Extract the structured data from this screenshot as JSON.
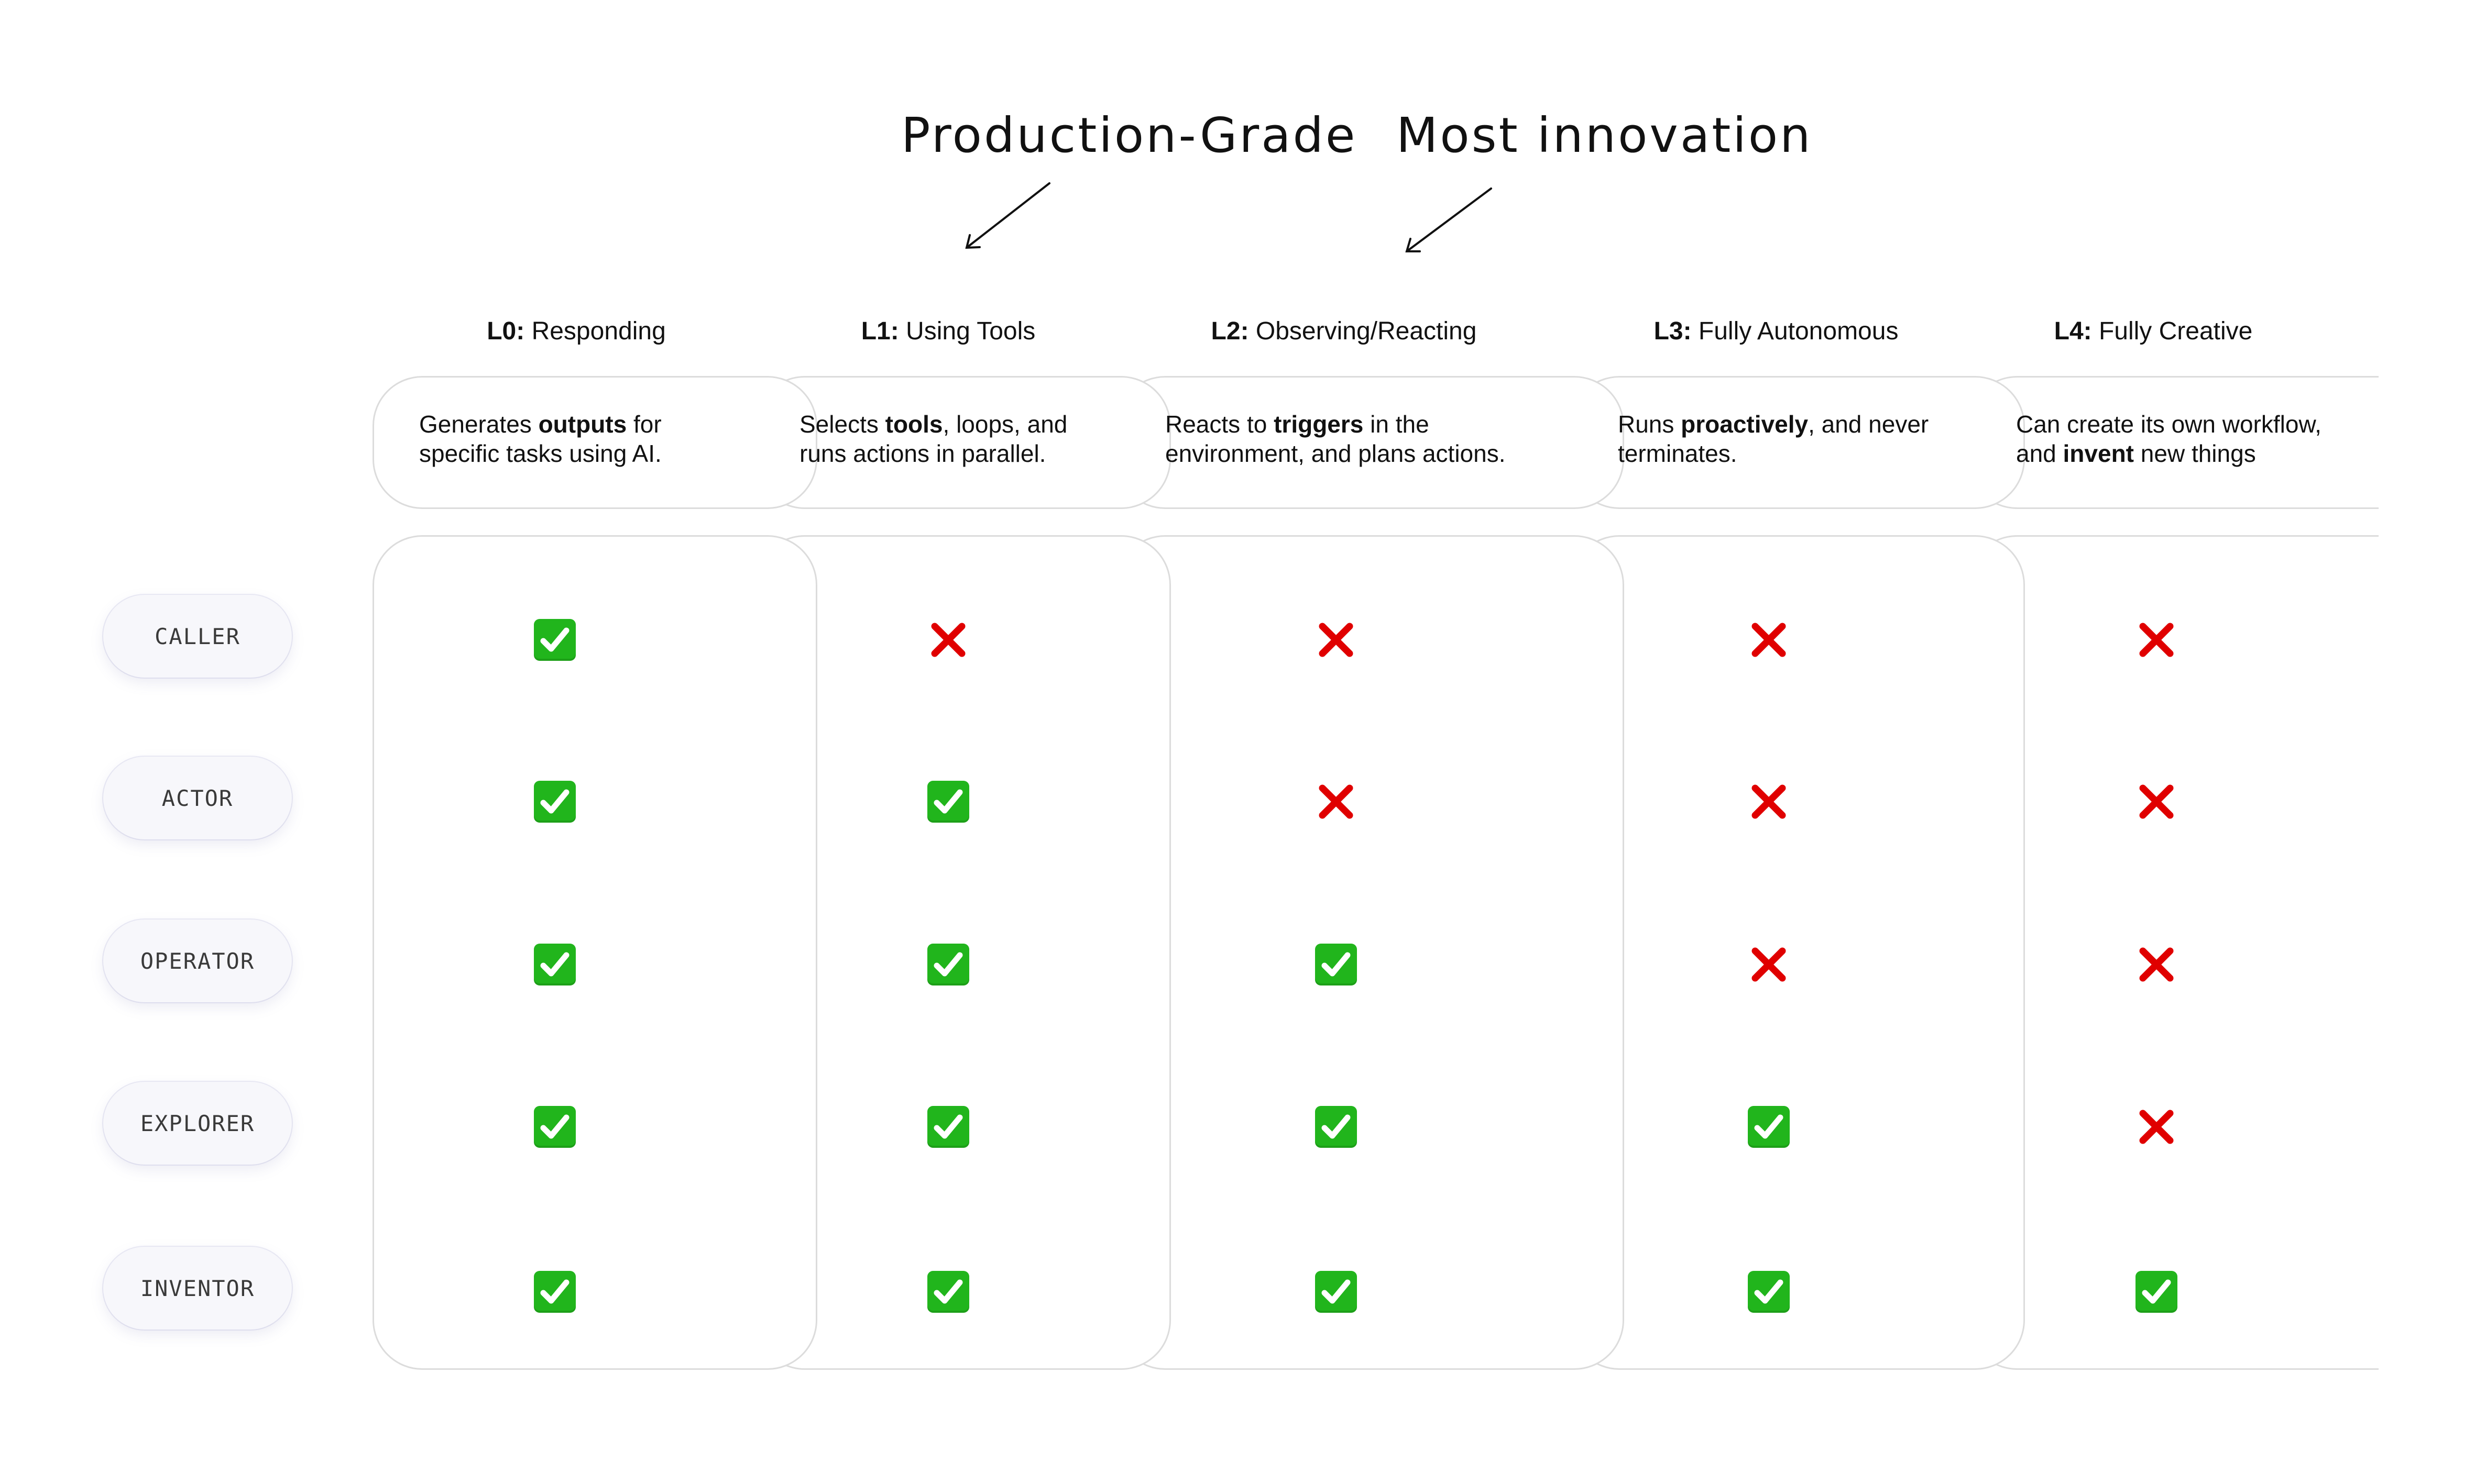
{
  "annotations": {
    "left": "Production-Grade",
    "right": "Most innovation"
  },
  "levels": [
    {
      "code": "L0:",
      "name": "Responding",
      "desc": [
        [
          [
            "Generates ",
            false
          ],
          [
            "outputs",
            true
          ],
          [
            " for",
            false
          ]
        ],
        [
          [
            "specific tasks using AI.",
            false
          ]
        ]
      ]
    },
    {
      "code": "L1:",
      "name": "Using Tools",
      "desc": [
        [
          [
            "Selects ",
            false
          ],
          [
            "tools",
            true
          ],
          [
            ", loops, and",
            false
          ]
        ],
        [
          [
            "runs actions in parallel.",
            false
          ]
        ]
      ]
    },
    {
      "code": "L2:",
      "name": "Observing/Reacting",
      "desc": [
        [
          [
            "Reacts to ",
            false
          ],
          [
            "triggers",
            true
          ],
          [
            " in the",
            false
          ]
        ],
        [
          [
            "environment, and plans actions.",
            false
          ]
        ]
      ]
    },
    {
      "code": "L3:",
      "name": "Fully Autonomous",
      "desc": [
        [
          [
            "Runs ",
            false
          ],
          [
            "proactively",
            true
          ],
          [
            ", and never",
            false
          ]
        ],
        [
          [
            "terminates.",
            false
          ]
        ]
      ]
    },
    {
      "code": "L4:",
      "name": "Fully Creative",
      "desc": [
        [
          [
            "Can create its own workflow,",
            false
          ]
        ],
        [
          [
            "and ",
            false
          ],
          [
            "invent",
            true
          ],
          [
            " new things",
            false
          ]
        ]
      ]
    }
  ],
  "roles": [
    {
      "label": "CALLER",
      "marks": [
        true,
        false,
        false,
        false,
        false
      ]
    },
    {
      "label": "ACTOR",
      "marks": [
        true,
        true,
        false,
        false,
        false
      ]
    },
    {
      "label": "OPERATOR",
      "marks": [
        true,
        true,
        true,
        false,
        false
      ]
    },
    {
      "label": "EXPLORER",
      "marks": [
        true,
        true,
        true,
        true,
        false
      ]
    },
    {
      "label": "INVENTOR",
      "marks": [
        true,
        true,
        true,
        true,
        true
      ]
    }
  ],
  "icons": {
    "supported": "check-mark-icon",
    "unsupported": "cross-mark-icon"
  },
  "colors": {
    "check_bg": "#21b51c",
    "cross": "#e00000",
    "border": "#dcdcdc"
  }
}
